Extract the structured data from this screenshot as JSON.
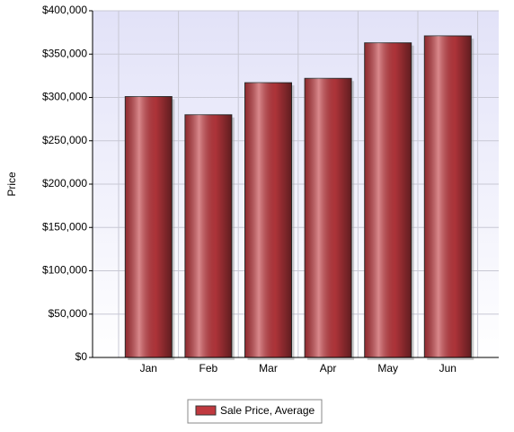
{
  "chart_data": {
    "type": "bar",
    "y_label": "Price",
    "categories": [
      "Jan",
      "Feb",
      "Mar",
      "Apr",
      "May",
      "Jun"
    ],
    "series": [
      {
        "name": "Sale Price, Average",
        "color": "#c0393f",
        "values": [
          301000,
          280000,
          317000,
          322000,
          363000,
          371000
        ]
      }
    ],
    "ylim": [
      0,
      400000
    ],
    "yticks": [
      {
        "value": 0,
        "label": "$0"
      },
      {
        "value": 50000,
        "label": "$50,000"
      },
      {
        "value": 100000,
        "label": "$100,000"
      },
      {
        "value": 150000,
        "label": "$150,000"
      },
      {
        "value": 200000,
        "label": "$200,000"
      },
      {
        "value": 250000,
        "label": "$250,000"
      },
      {
        "value": 300000,
        "label": "$300,000"
      },
      {
        "value": 350000,
        "label": "$350,000"
      },
      {
        "value": 400000,
        "label": "$400,000"
      }
    ],
    "grid": true
  }
}
